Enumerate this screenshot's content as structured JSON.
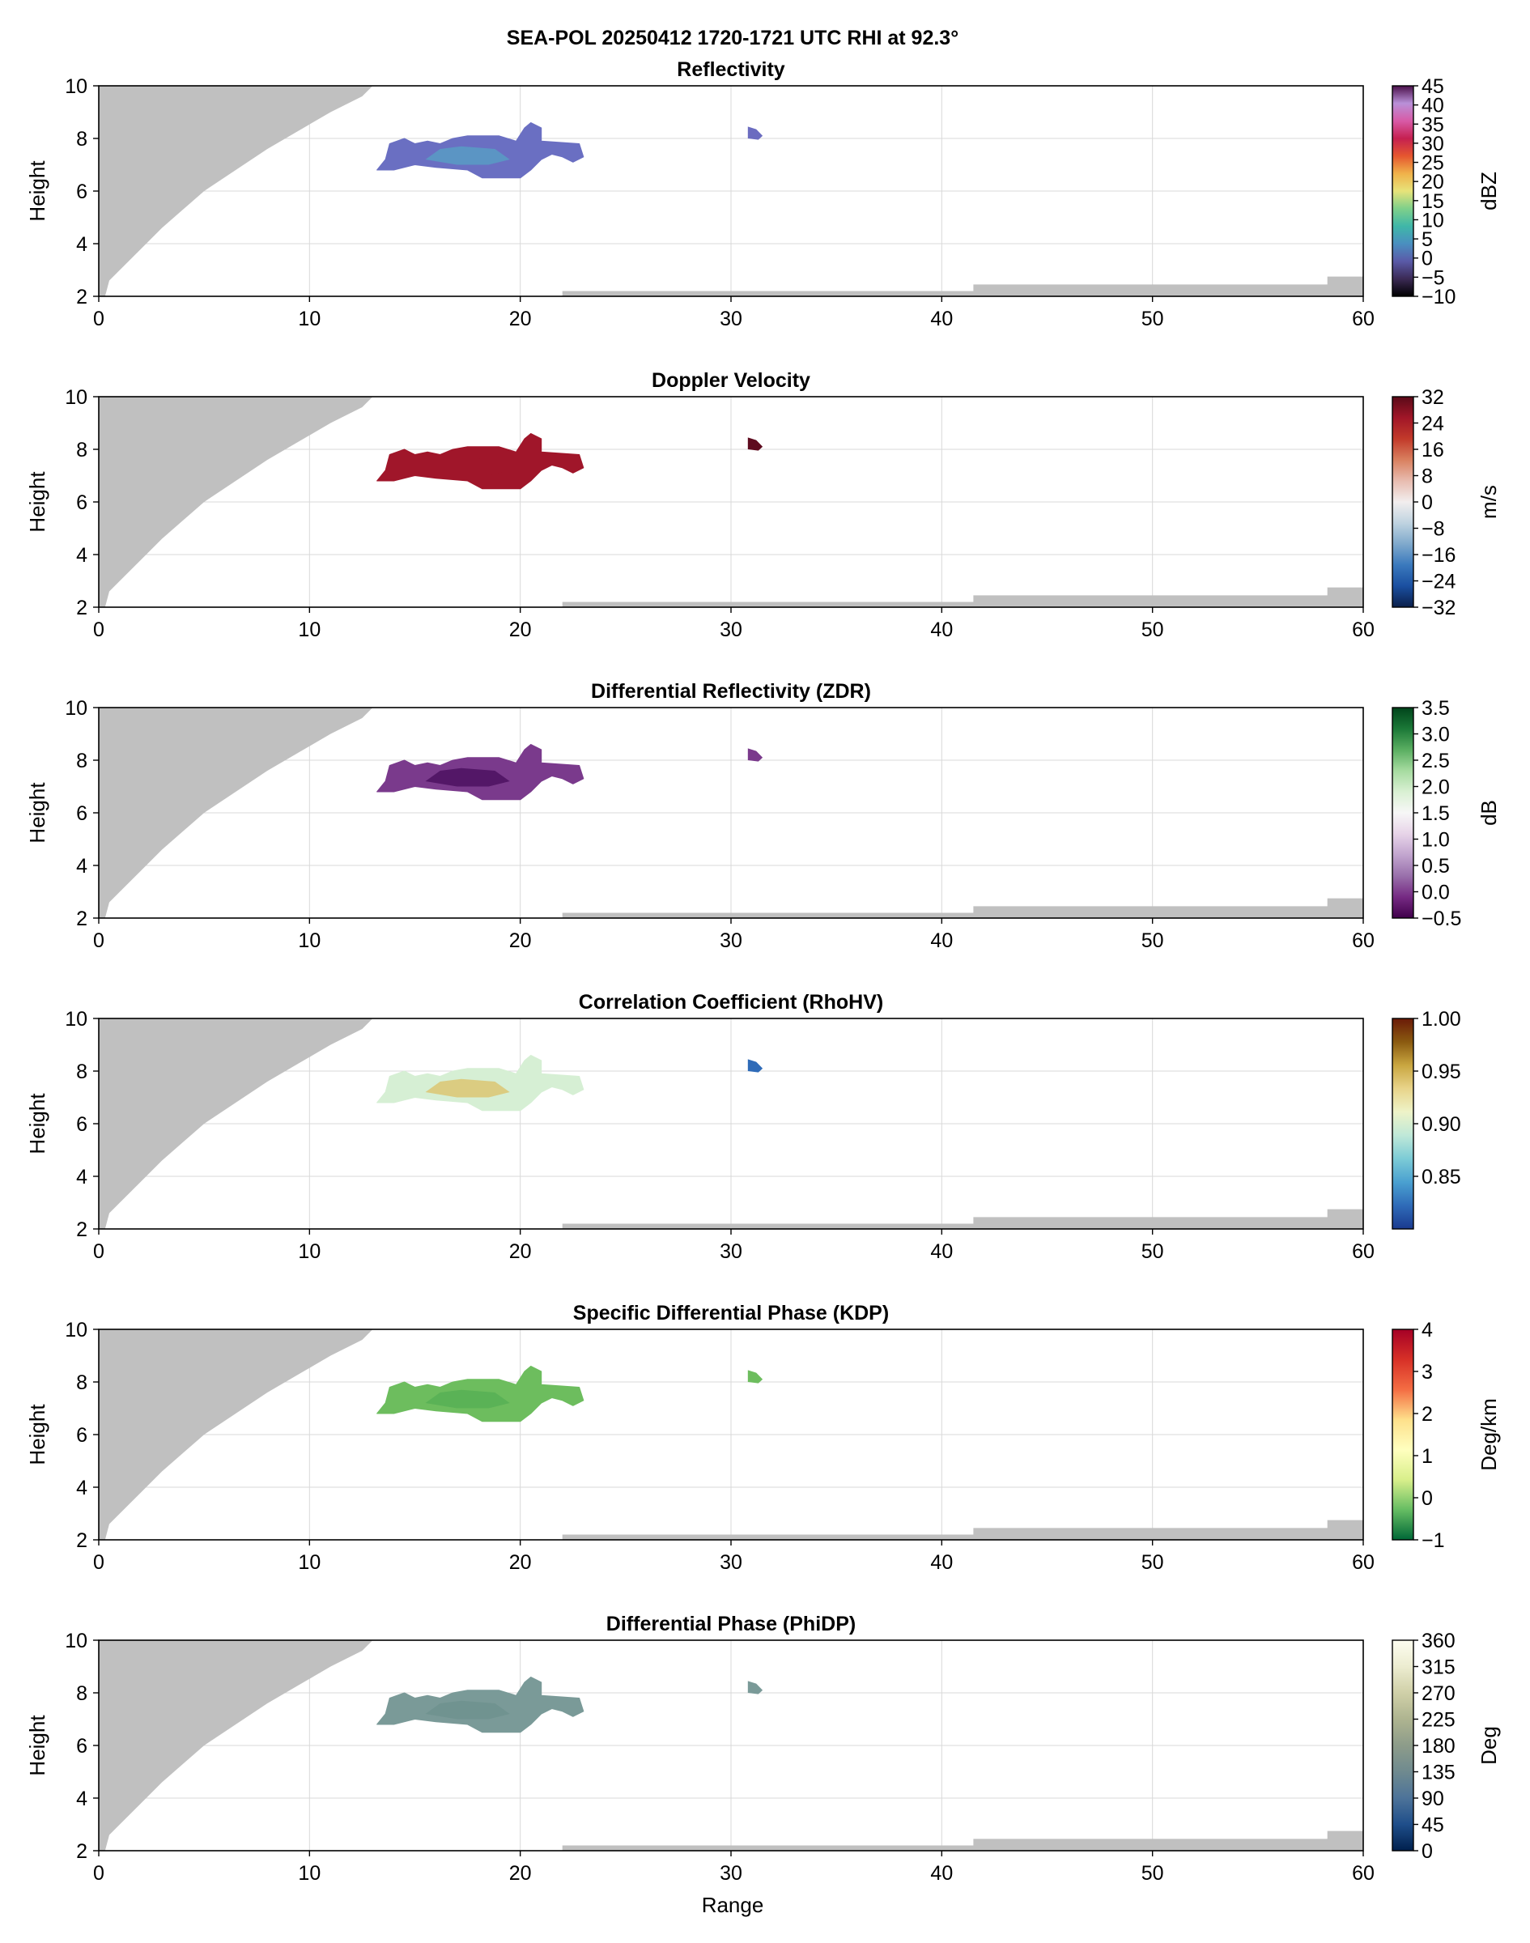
{
  "figure": {
    "suptitle": "SEA-POL 20250412 1720-1721 UTC RHI at 92.3°",
    "xlabel": "Range"
  },
  "chart_data": [
    {
      "type": "heatmap",
      "title": "Reflectivity",
      "ylabel": "Height",
      "xlabel": "",
      "xlim": [
        0,
        60
      ],
      "ylim": [
        2,
        10
      ],
      "xticks": [
        "0",
        "10",
        "20",
        "30",
        "40",
        "50",
        "60"
      ],
      "yticks": [
        "2",
        "4",
        "6",
        "8",
        "10"
      ],
      "grid": true,
      "colorbar": {
        "label": "dBZ",
        "min": -10,
        "max": 45,
        "ticks": [
          "−10",
          "−5",
          "0",
          "5",
          "10",
          "15",
          "20",
          "25",
          "30",
          "35",
          "40",
          "45"
        ],
        "tick_values": [
          -10,
          -5,
          0,
          5,
          10,
          15,
          20,
          25,
          30,
          35,
          40,
          45
        ],
        "colors": [
          "#000000",
          "#3b2a55",
          "#5a5aa8",
          "#4a8fc0",
          "#3fb7a8",
          "#7fd08a",
          "#e7e37a",
          "#f0b24a",
          "#e5562f",
          "#c52050",
          "#d85aa6",
          "#b990d8",
          "#4a104a"
        ]
      },
      "echo": {
        "main_fill": "#6a6fc2",
        "core_fill": "#5a99c4",
        "cell_fill": "#6b6cc0"
      }
    },
    {
      "type": "heatmap",
      "title": "Doppler Velocity",
      "ylabel": "Height",
      "xlabel": "",
      "xlim": [
        0,
        60
      ],
      "ylim": [
        2,
        10
      ],
      "xticks": [
        "0",
        "10",
        "20",
        "30",
        "40",
        "50",
        "60"
      ],
      "yticks": [
        "2",
        "4",
        "6",
        "8",
        "10"
      ],
      "grid": true,
      "colorbar": {
        "label": "m/s",
        "min": -32,
        "max": 32,
        "ticks": [
          "−32",
          "−24",
          "−16",
          "−8",
          "0",
          "8",
          "16",
          "24",
          "32"
        ],
        "tick_values": [
          -32,
          -24,
          -16,
          -8,
          0,
          8,
          16,
          24,
          32
        ],
        "colors": [
          "#0b1f4a",
          "#1a4fa0",
          "#3a79bd",
          "#7fa9cc",
          "#bfd3e0",
          "#f2eeee",
          "#e8bcb0",
          "#d9805f",
          "#c23a2a",
          "#a11628",
          "#5a0a18"
        ]
      },
      "echo": {
        "main_fill": "#a0162a",
        "core_fill": "#a0162a",
        "cell_fill": "#5e0b1f"
      }
    },
    {
      "type": "heatmap",
      "title": "Differential Reflectivity (ZDR)",
      "ylabel": "Height",
      "xlabel": "",
      "xlim": [
        0,
        60
      ],
      "ylim": [
        2,
        10
      ],
      "xticks": [
        "0",
        "10",
        "20",
        "30",
        "40",
        "50",
        "60"
      ],
      "yticks": [
        "2",
        "4",
        "6",
        "8",
        "10"
      ],
      "grid": true,
      "colorbar": {
        "label": "dB",
        "min": -0.5,
        "max": 3.5,
        "ticks": [
          "−0.5",
          "0.0",
          "0.5",
          "1.0",
          "1.5",
          "2.0",
          "2.5",
          "3.0",
          "3.5"
        ],
        "tick_values": [
          -0.5,
          0.0,
          0.5,
          1.0,
          1.5,
          2.0,
          2.5,
          3.0,
          3.5
        ],
        "colors": [
          "#40004b",
          "#762a83",
          "#9970ab",
          "#c2a5cf",
          "#e7d4e8",
          "#f7f7f7",
          "#d9f0d3",
          "#a6dba0",
          "#5aae61",
          "#1b7837",
          "#00441b"
        ]
      },
      "echo": {
        "main_fill": "#7a3a8c",
        "core_fill": "#4f1463",
        "cell_fill": "#7a3a8c"
      }
    },
    {
      "type": "heatmap",
      "title": "Correlation Coefficient (RhoHV)",
      "ylabel": "Height",
      "xlabel": "",
      "xlim": [
        0,
        60
      ],
      "ylim": [
        2,
        10
      ],
      "xticks": [
        "0",
        "10",
        "20",
        "30",
        "40",
        "50",
        "60"
      ],
      "yticks": [
        "2",
        "4",
        "6",
        "8",
        "10"
      ],
      "grid": true,
      "colorbar": {
        "label": "",
        "min": 0.8,
        "max": 1.0,
        "ticks": [
          "0.85",
          "0.90",
          "0.95",
          "1.00"
        ],
        "tick_values": [
          0.85,
          0.9,
          0.95,
          1.0
        ],
        "colors": [
          "#1a3a8f",
          "#2f6bb8",
          "#4aa0d0",
          "#7ccbd6",
          "#bfe8d8",
          "#eef3c8",
          "#e8d48a",
          "#c9a640",
          "#8a5a10",
          "#6a1a08"
        ]
      },
      "echo": {
        "main_fill": "#d6efd4",
        "core_fill": "#dcc878",
        "cell_fill": "#2f6bb8"
      }
    },
    {
      "type": "heatmap",
      "title": "Specific Differential Phase (KDP)",
      "ylabel": "Height",
      "xlabel": "",
      "xlim": [
        0,
        60
      ],
      "ylim": [
        2,
        10
      ],
      "xticks": [
        "0",
        "10",
        "20",
        "30",
        "40",
        "50",
        "60"
      ],
      "yticks": [
        "2",
        "4",
        "6",
        "8",
        "10"
      ],
      "grid": true,
      "colorbar": {
        "label": "Deg/km",
        "min": -1,
        "max": 4,
        "ticks": [
          "−1",
          "0",
          "1",
          "2",
          "3",
          "4"
        ],
        "tick_values": [
          -1,
          0,
          1,
          2,
          3,
          4
        ],
        "colors": [
          "#006837",
          "#66bd63",
          "#d9ef8b",
          "#ffffbf",
          "#fee08b",
          "#f46d43",
          "#d73027",
          "#a50026"
        ]
      },
      "echo": {
        "main_fill": "#6dbd5e",
        "core_fill": "#58b055",
        "cell_fill": "#6dbd5e"
      }
    },
    {
      "type": "heatmap",
      "title": "Differential Phase (PhiDP)",
      "ylabel": "Height",
      "xlabel": "Range",
      "xlim": [
        0,
        60
      ],
      "ylim": [
        2,
        10
      ],
      "xticks": [
        "0",
        "10",
        "20",
        "30",
        "40",
        "50",
        "60"
      ],
      "yticks": [
        "2",
        "4",
        "6",
        "8",
        "10"
      ],
      "grid": true,
      "colorbar": {
        "label": "Deg",
        "min": 0,
        "max": 360,
        "ticks": [
          "0",
          "45",
          "90",
          "135",
          "180",
          "225",
          "270",
          "315",
          "360"
        ],
        "tick_values": [
          0,
          45,
          90,
          135,
          180,
          225,
          270,
          315,
          360
        ],
        "colors": [
          "#00204d",
          "#1f4e8a",
          "#4d7399",
          "#6f8a8f",
          "#8d9c8a",
          "#aeb490",
          "#d0d0a8",
          "#ececd0",
          "#fdfdf0"
        ]
      },
      "echo": {
        "main_fill": "#7a9a98",
        "core_fill": "#6f928f",
        "cell_fill": "#7a9a98"
      }
    }
  ],
  "geometry_data": {
    "blocked_beam_color": "#c0c0c0",
    "upper_blocked": [
      [
        0,
        10
      ],
      [
        13,
        10
      ],
      [
        12.5,
        9.6
      ],
      [
        11,
        9.0
      ],
      [
        9.5,
        8.3
      ],
      [
        8,
        7.6
      ],
      [
        6.5,
        6.8
      ],
      [
        5,
        6.0
      ],
      [
        4,
        5.3
      ],
      [
        3,
        4.6
      ],
      [
        2,
        3.8
      ],
      [
        1,
        3.0
      ],
      [
        0.5,
        2.6
      ],
      [
        0.3,
        2.0
      ],
      [
        0,
        2.0
      ]
    ],
    "ground_steps": [
      [
        22,
        2
      ],
      [
        22,
        2.2
      ],
      [
        41.5,
        2.2
      ],
      [
        41.5,
        2.45
      ],
      [
        58.3,
        2.45
      ],
      [
        58.3,
        2.75
      ],
      [
        60,
        2.75
      ],
      [
        60,
        2
      ]
    ],
    "echo_main": [
      [
        13.2,
        6.8
      ],
      [
        13.6,
        7.2
      ],
      [
        13.8,
        7.8
      ],
      [
        14.5,
        8.0
      ],
      [
        15,
        7.8
      ],
      [
        15.6,
        7.9
      ],
      [
        16.2,
        7.8
      ],
      [
        16.8,
        8.0
      ],
      [
        17.5,
        8.1
      ],
      [
        19,
        8.1
      ],
      [
        19.8,
        7.9
      ],
      [
        20.2,
        8.4
      ],
      [
        20.5,
        8.6
      ],
      [
        21,
        8.4
      ],
      [
        21,
        7.9
      ],
      [
        22.8,
        7.8
      ],
      [
        23,
        7.3
      ],
      [
        22.5,
        7.1
      ],
      [
        22,
        7.3
      ],
      [
        21.5,
        7.4
      ],
      [
        21,
        7.2
      ],
      [
        20.5,
        6.8
      ],
      [
        20,
        6.5
      ],
      [
        18.2,
        6.5
      ],
      [
        17.5,
        6.8
      ],
      [
        16,
        6.9
      ],
      [
        15,
        7.0
      ],
      [
        14,
        6.8
      ]
    ],
    "echo_core": [
      [
        15.5,
        7.2
      ],
      [
        16.2,
        7.6
      ],
      [
        17.2,
        7.7
      ],
      [
        18.8,
        7.6
      ],
      [
        19.5,
        7.2
      ],
      [
        18.5,
        7.0
      ],
      [
        17,
        7.0
      ]
    ],
    "echo_cell": [
      [
        30.8,
        8.0
      ],
      [
        30.8,
        8.45
      ],
      [
        31.2,
        8.35
      ],
      [
        31.5,
        8.1
      ],
      [
        31.3,
        7.95
      ]
    ]
  }
}
